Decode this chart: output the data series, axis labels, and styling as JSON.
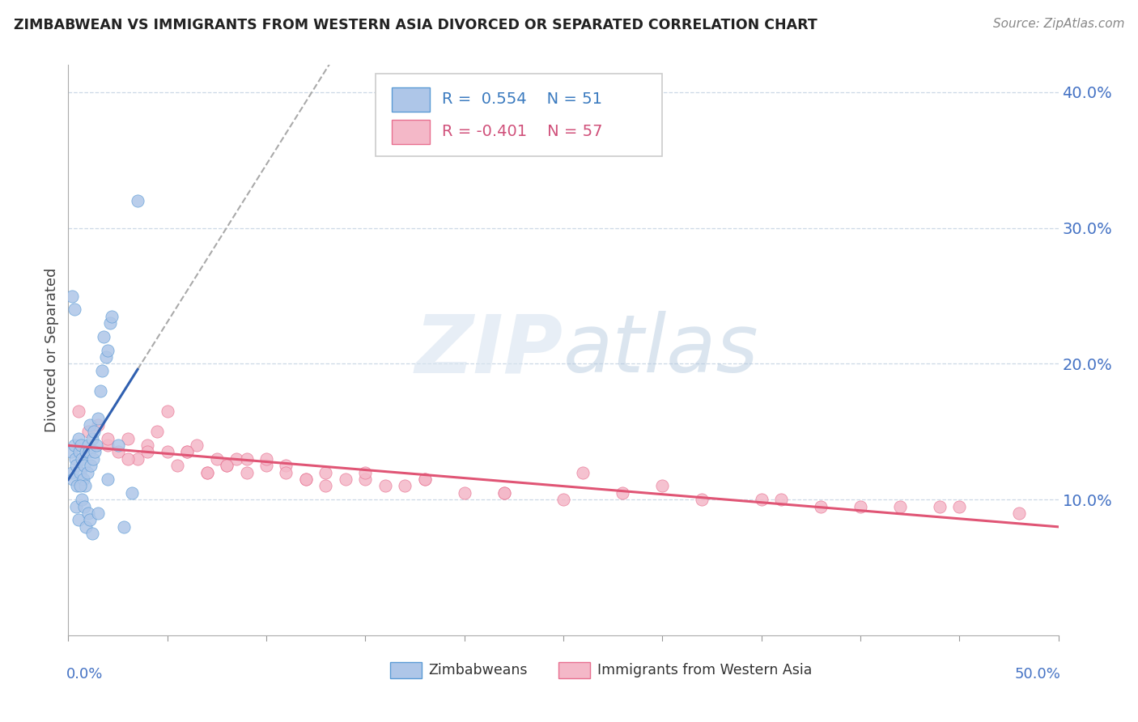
{
  "title": "ZIMBABWEAN VS IMMIGRANTS FROM WESTERN ASIA DIVORCED OR SEPARATED CORRELATION CHART",
  "source": "Source: ZipAtlas.com",
  "ylabel": "Divorced or Separated",
  "xlim": [
    0.0,
    50.0
  ],
  "ylim": [
    0.0,
    42.0
  ],
  "yticks": [
    10.0,
    20.0,
    30.0,
    40.0
  ],
  "xticks": [
    0.0,
    5.0,
    10.0,
    15.0,
    20.0,
    25.0,
    30.0,
    35.0,
    40.0,
    45.0,
    50.0
  ],
  "blue_label": "Zimbabweans",
  "pink_label": "Immigrants from Western Asia",
  "blue_R": 0.554,
  "blue_N": 51,
  "pink_R": -0.401,
  "pink_N": 57,
  "blue_fill_color": "#aec6e8",
  "pink_fill_color": "#f4b8c8",
  "blue_edge_color": "#5b9bd5",
  "pink_edge_color": "#e87090",
  "blue_line_color": "#3060b0",
  "pink_line_color": "#e05575",
  "watermark_zip": "ZIP",
  "watermark_atlas": "atlas",
  "blue_scatter_x": [
    0.15,
    0.2,
    0.25,
    0.3,
    0.35,
    0.4,
    0.45,
    0.5,
    0.55,
    0.6,
    0.65,
    0.7,
    0.75,
    0.8,
    0.85,
    0.9,
    0.95,
    1.0,
    1.05,
    1.1,
    1.15,
    1.2,
    1.25,
    1.3,
    1.35,
    1.4,
    1.5,
    1.6,
    1.7,
    1.8,
    1.9,
    2.0,
    2.1,
    2.2,
    2.5,
    2.8,
    3.2,
    3.5,
    0.2,
    0.3,
    0.4,
    0.5,
    0.6,
    0.7,
    0.8,
    0.9,
    1.0,
    1.1,
    1.2,
    1.5,
    2.0
  ],
  "blue_scatter_y": [
    13.5,
    12.0,
    11.5,
    14.0,
    13.0,
    12.5,
    11.0,
    14.5,
    13.5,
    12.0,
    14.0,
    13.0,
    11.5,
    12.5,
    11.0,
    13.5,
    12.0,
    14.0,
    13.5,
    15.5,
    12.5,
    14.5,
    13.0,
    15.0,
    13.5,
    14.0,
    16.0,
    18.0,
    19.5,
    22.0,
    20.5,
    21.0,
    23.0,
    23.5,
    14.0,
    8.0,
    10.5,
    32.0,
    25.0,
    24.0,
    9.5,
    8.5,
    11.0,
    10.0,
    9.5,
    8.0,
    9.0,
    8.5,
    7.5,
    9.0,
    11.5
  ],
  "pink_scatter_x": [
    0.5,
    1.0,
    1.5,
    2.0,
    2.5,
    3.0,
    3.5,
    4.0,
    4.5,
    5.0,
    5.5,
    6.0,
    6.5,
    7.0,
    7.5,
    8.0,
    8.5,
    9.0,
    10.0,
    11.0,
    12.0,
    13.0,
    14.0,
    15.0,
    16.0,
    17.0,
    18.0,
    20.0,
    22.0,
    25.0,
    28.0,
    32.0,
    35.0,
    38.0,
    42.0,
    45.0,
    48.0,
    3.0,
    5.0,
    7.0,
    9.0,
    11.0,
    13.0,
    15.0,
    18.0,
    22.0,
    26.0,
    30.0,
    36.0,
    40.0,
    44.0,
    2.0,
    4.0,
    6.0,
    8.0,
    10.0,
    12.0
  ],
  "pink_scatter_y": [
    16.5,
    15.0,
    15.5,
    14.0,
    13.5,
    14.5,
    13.0,
    14.0,
    15.0,
    13.5,
    12.5,
    13.5,
    14.0,
    12.0,
    13.0,
    12.5,
    13.0,
    12.0,
    12.5,
    12.5,
    11.5,
    12.0,
    11.5,
    11.5,
    11.0,
    11.0,
    11.5,
    10.5,
    10.5,
    10.0,
    10.5,
    10.0,
    10.0,
    9.5,
    9.5,
    9.5,
    9.0,
    13.0,
    16.5,
    12.0,
    13.0,
    12.0,
    11.0,
    12.0,
    11.5,
    10.5,
    12.0,
    11.0,
    10.0,
    9.5,
    9.5,
    14.5,
    13.5,
    13.5,
    12.5,
    13.0,
    11.5
  ]
}
